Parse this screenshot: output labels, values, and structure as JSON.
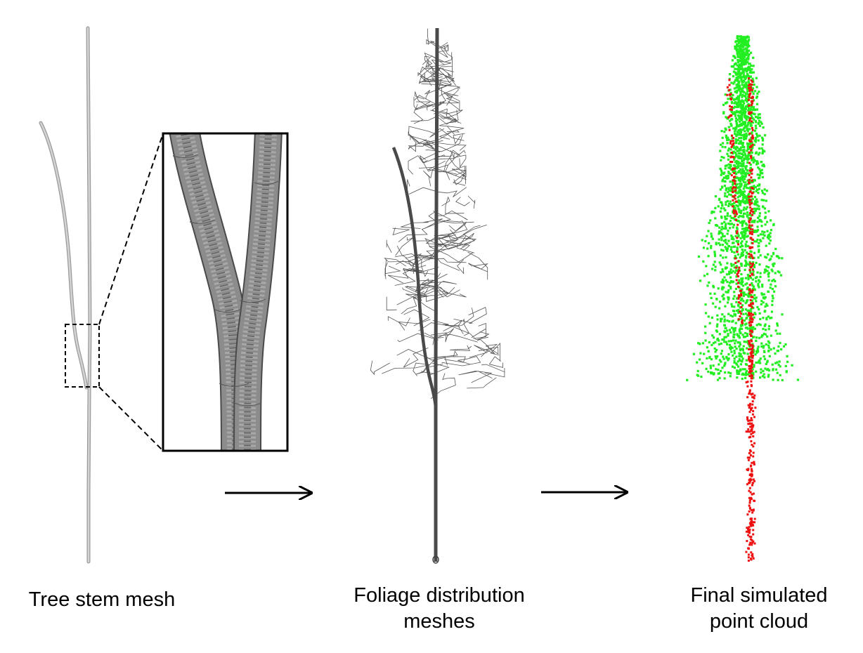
{
  "panels": [
    {
      "id": "stem",
      "caption": "Tree stem mesh"
    },
    {
      "id": "foliage",
      "caption_lines": [
        "Foliage distribution",
        "meshes"
      ]
    },
    {
      "id": "final",
      "caption_lines": [
        "Final simulated",
        "point cloud"
      ]
    }
  ],
  "colors": {
    "stem_mesh": "#b5b5b5",
    "stem_mesh_edge": "#7a7a7a",
    "zoom_fill": "#8d8d8d",
    "foliage_wire": "#555555",
    "foliage_points": "#22ee22",
    "stem_points": "#ee1111",
    "arrow": "#000000"
  },
  "icons": [
    "zoom-inset",
    "right-arrow"
  ]
}
